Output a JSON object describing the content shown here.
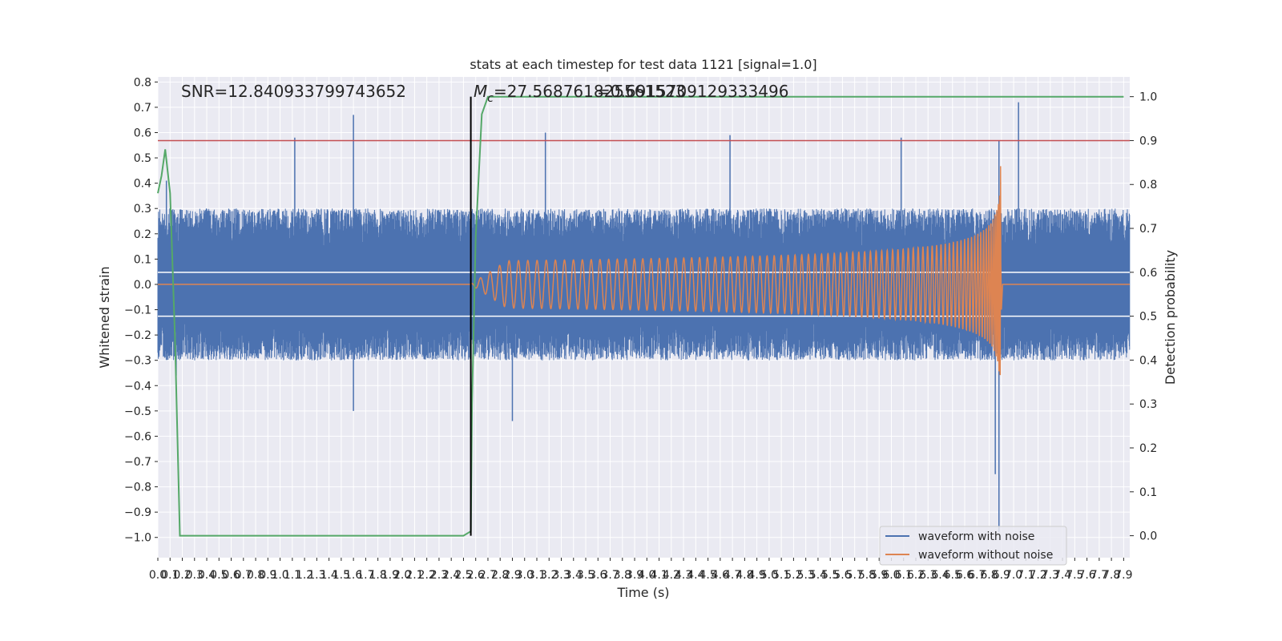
{
  "chart_data": {
    "type": "line",
    "title": "stats at each timestep for test data 1121 [signal=1.0]",
    "xlabel": "Time (s)",
    "ylabel": "Whitened strain",
    "ylabel_right": "Detection probability",
    "xlim": [
      0.0,
      7.95
    ],
    "ylim": [
      -1.08,
      0.82
    ],
    "ylim_right": [
      -0.05,
      1.045
    ],
    "x_ticks": [
      0.0,
      0.1,
      0.2,
      0.3,
      0.4,
      0.5,
      0.6,
      0.7,
      0.8,
      0.9,
      1.0,
      1.1,
      1.2,
      1.3,
      1.4,
      1.5,
      1.6,
      1.7,
      1.8,
      1.9,
      2.0,
      2.1,
      2.2,
      2.3,
      2.4,
      2.5,
      2.6,
      2.7,
      2.8,
      2.9,
      3.0,
      3.1,
      3.2,
      3.3,
      3.4,
      3.5,
      3.6,
      3.7,
      3.8,
      3.9,
      4.0,
      4.1,
      4.2,
      4.3,
      4.4,
      4.5,
      4.6,
      4.7,
      4.8,
      4.9,
      5.0,
      5.1,
      5.2,
      5.3,
      5.4,
      5.5,
      5.6,
      5.7,
      5.8,
      5.9,
      6.0,
      6.1,
      6.2,
      6.3,
      6.4,
      6.5,
      6.6,
      6.7,
      6.8,
      6.9,
      7.0,
      7.1,
      7.2,
      7.3,
      7.4,
      7.5,
      7.6,
      7.7,
      7.8,
      7.9
    ],
    "x_tick_labels": [
      "0.0",
      "0.1",
      "0.2",
      "0.3",
      "0.4",
      "0.5",
      "0.6",
      "0.7",
      "0.8",
      "0.9",
      "1.0",
      "1.1",
      "1.2",
      "1.3",
      "1.4",
      "1.5",
      "1.6",
      "1.7",
      "1.8",
      "1.9",
      "2.0",
      "2.1",
      "2.2",
      "2.3",
      "2.4",
      "2.5",
      "2.6",
      "2.7",
      "2.8",
      "2.9",
      "3.0",
      "3.1",
      "3.2",
      "3.3",
      "3.4",
      "3.5",
      "3.6",
      "3.7",
      "3.8",
      "3.9",
      "4.0",
      "4.1",
      "4.2",
      "4.3",
      "4.4",
      "4.5",
      "4.6",
      "4.7",
      "4.8",
      "4.9",
      "5.0",
      "5.1",
      "5.2",
      "5.3",
      "5.4",
      "5.5",
      "5.6",
      "5.7",
      "5.8",
      "5.9",
      "6.0",
      "6.1",
      "6.2",
      "6.3",
      "6.4",
      "6.5",
      "6.6",
      "6.7",
      "6.8",
      "6.9",
      "7.0",
      "7.1",
      "7.2",
      "7.3",
      "7.4",
      "7.5",
      "7.6",
      "7.7",
      "7.8",
      "7.9"
    ],
    "y_ticks": [
      0.8,
      0.7,
      0.6,
      0.5,
      0.4,
      0.3,
      0.2,
      0.1,
      0.0,
      -0.1,
      -0.2,
      -0.3,
      -0.4,
      -0.5,
      -0.6,
      -0.7,
      -0.8,
      -0.9,
      -1.0
    ],
    "y_tick_labels": [
      "0.8",
      "0.7",
      "0.6",
      "0.5",
      "0.4",
      "0.3",
      "0.2",
      "0.1",
      "0.0",
      "−0.1",
      "−0.2",
      "−0.3",
      "−0.4",
      "−0.5",
      "−0.6",
      "−0.7",
      "−0.8",
      "−0.9",
      "−1.0"
    ],
    "y_ticks_right": [
      1.0,
      0.9,
      0.8,
      0.7,
      0.6,
      0.5,
      0.4,
      0.3,
      0.2,
      0.1,
      0.0
    ],
    "y_tick_labels_right": [
      "1.0",
      "0.9",
      "0.8",
      "0.7",
      "0.6",
      "0.5",
      "0.4",
      "0.3",
      "0.2",
      "0.1",
      "0.0"
    ],
    "grid": true,
    "legend_position": "bottom-right",
    "annotations": [
      "SNR=12.840933799743652",
      "$M_c$=27.568761825561523",
      "=0.6915709129333496"
    ],
    "mc_label": {
      "main": "M",
      "sub": "c",
      "rest": "=27.568761825561523"
    },
    "event_time": 2.56,
    "threshold_probability": 0.9,
    "series": [
      {
        "name": "waveform with noise",
        "color": "#4c72b0",
        "axis": "left",
        "kind": "noise",
        "typical_band": [
          -0.3,
          0.3
        ],
        "peaks": [
          [
            0.07,
            0.41
          ],
          [
            1.12,
            0.58
          ],
          [
            1.6,
            0.67
          ],
          [
            3.17,
            0.6
          ],
          [
            4.68,
            0.59
          ],
          [
            6.08,
            0.58
          ],
          [
            6.88,
            0.57
          ],
          [
            7.04,
            0.72
          ],
          [
            0.15,
            -0.36
          ],
          [
            1.6,
            -0.5
          ],
          [
            2.9,
            -0.54
          ],
          [
            6.88,
            -0.98
          ],
          [
            6.85,
            -0.75
          ]
        ]
      },
      {
        "name": "waveform without noise",
        "color": "#dd8452",
        "axis": "left",
        "kind": "chirp",
        "start": 2.56,
        "merger": 6.9,
        "peak_amplitude": 0.42
      },
      {
        "name": "",
        "color": "#55a868",
        "axis": "right",
        "kind": "probability",
        "x": [
          0.0,
          0.03,
          0.06,
          0.1,
          0.14,
          0.18,
          2.5,
          2.56,
          2.57,
          2.6,
          2.65,
          2.7,
          7.9
        ],
        "y": [
          0.78,
          0.82,
          0.88,
          0.78,
          0.45,
          0.0,
          0.0,
          0.01,
          0.3,
          0.68,
          0.96,
          1.0,
          1.0
        ]
      }
    ]
  },
  "colors": {
    "background": "#eaeaf2",
    "grid": "#ffffff",
    "threshold_line": "#c44e52",
    "event_line": "#000000"
  }
}
